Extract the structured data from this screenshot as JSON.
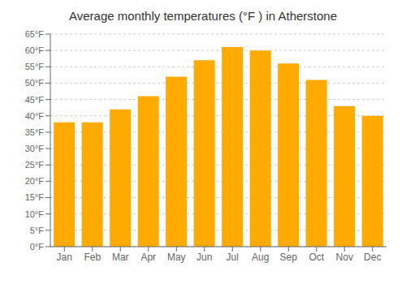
{
  "chart_data": {
    "type": "bar",
    "title": "Average monthly temperatures (°F ) in Atherstone",
    "categories": [
      "Jan",
      "Feb",
      "Mar",
      "Apr",
      "May",
      "Jun",
      "Jul",
      "Aug",
      "Sep",
      "Oct",
      "Nov",
      "Dec"
    ],
    "values": [
      38,
      38,
      42,
      46,
      52,
      57,
      61,
      60,
      56,
      51,
      43,
      40
    ],
    "color": "#FFAA00",
    "ylim": [
      0,
      65
    ],
    "yticks": [
      {
        "value": 0,
        "label": "0°F"
      },
      {
        "value": 5,
        "label": "5°F"
      },
      {
        "value": 10,
        "label": "10°F"
      },
      {
        "value": 15,
        "label": "15°F"
      },
      {
        "value": 20,
        "label": "20°F"
      },
      {
        "value": 25,
        "label": "25°F"
      },
      {
        "value": 30,
        "label": "30°F"
      },
      {
        "value": 35,
        "label": "35°F"
      },
      {
        "value": 40,
        "label": "40°F"
      },
      {
        "value": 45,
        "label": "45°F"
      },
      {
        "value": 50,
        "label": "50°F"
      },
      {
        "value": 55,
        "label": "55°F"
      },
      {
        "value": 60,
        "label": "60°F"
      },
      {
        "value": 65,
        "label": "65°F"
      }
    ],
    "grid": true
  }
}
